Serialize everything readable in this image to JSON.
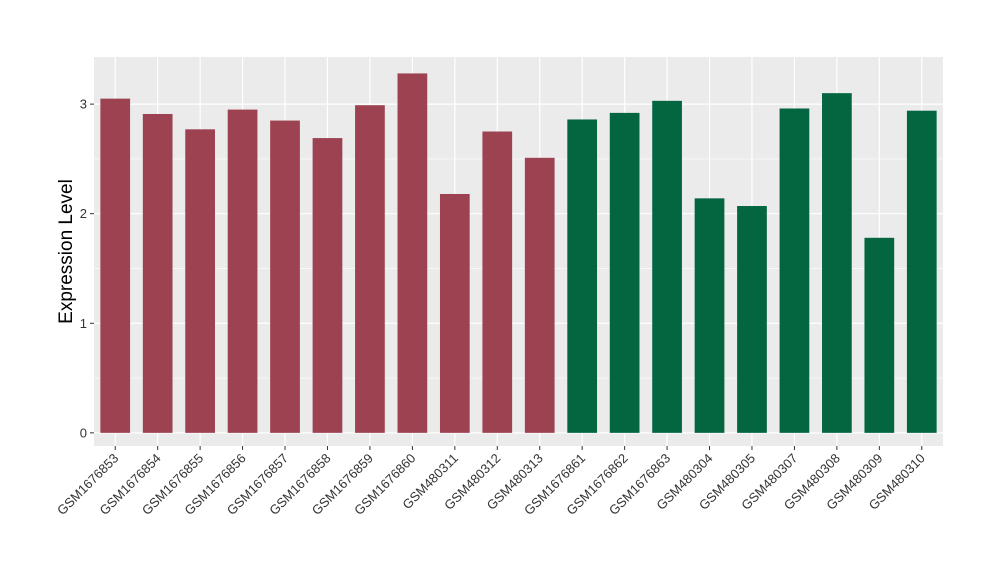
{
  "chart_data": {
    "type": "bar",
    "title": "",
    "xlabel": "",
    "ylabel": "Expression Level",
    "ylim": [
      -0.12,
      3.43
    ],
    "yticks": [
      0,
      1,
      2,
      3
    ],
    "grid": true,
    "legend": "none",
    "categories": [
      "GSM1676853",
      "GSM1676854",
      "GSM1676855",
      "GSM1676856",
      "GSM1676857",
      "GSM1676858",
      "GSM1676859",
      "GSM1676860",
      "GSM480311",
      "GSM480312",
      "GSM480313",
      "GSM1676861",
      "GSM1676862",
      "GSM1676863",
      "GSM480304",
      "GSM480305",
      "GSM480307",
      "GSM480308",
      "GSM480309",
      "GSM480310"
    ],
    "values": [
      3.05,
      2.91,
      2.77,
      2.95,
      2.85,
      2.69,
      2.99,
      3.28,
      2.18,
      2.75,
      2.51,
      2.86,
      2.92,
      3.03,
      2.14,
      2.07,
      2.96,
      3.1,
      1.78,
      2.94
    ],
    "groups": [
      0,
      0,
      0,
      0,
      0,
      0,
      0,
      0,
      0,
      0,
      0,
      1,
      1,
      1,
      1,
      1,
      1,
      1,
      1,
      1
    ],
    "group_colors": [
      "#9c4250",
      "#046541"
    ],
    "panel_background": "#ebebeb",
    "grid_color": "#ffffff"
  }
}
